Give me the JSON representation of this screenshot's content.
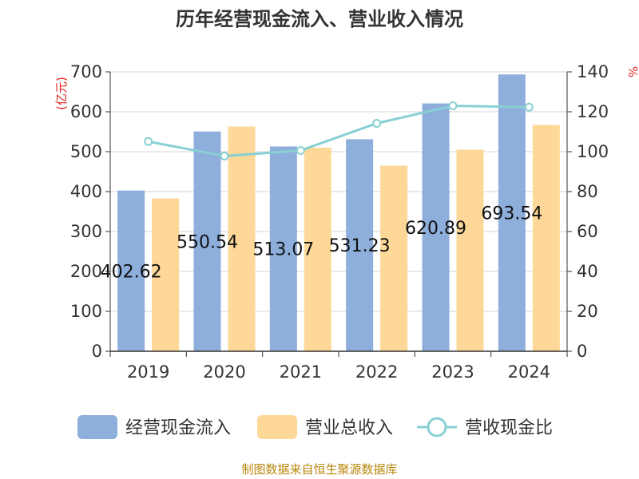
{
  "chart_data": {
    "type": "bar",
    "title": "历年经营现金流入、营业收入情况",
    "categories": [
      "2019",
      "2020",
      "2021",
      "2022",
      "2023",
      "2024"
    ],
    "series": [
      {
        "name": "经营现金流入",
        "kind": "bar",
        "axis": "left",
        "color": "#8eaedb",
        "values": [
          402.62,
          550.54,
          513.07,
          531.23,
          620.89,
          693.54
        ],
        "data_labels": [
          "402.62",
          "550.54",
          "513.07",
          "531.23",
          "620.89",
          "693.54"
        ]
      },
      {
        "name": "营业总收入",
        "kind": "bar",
        "axis": "left",
        "color": "#fdd898",
        "values": [
          383,
          563,
          510,
          465,
          505,
          567
        ]
      },
      {
        "name": "营收现金比",
        "kind": "line",
        "axis": "right",
        "color": "#88d0d3",
        "values": [
          105.1,
          97.8,
          100.6,
          114.2,
          123.0,
          122.3
        ]
      }
    ],
    "left_axis": {
      "unit": "(亿元)",
      "ylim": [
        0,
        700
      ],
      "ticks": [
        "0",
        "100",
        "200",
        "300",
        "400",
        "500",
        "600",
        "700"
      ]
    },
    "right_axis": {
      "unit": "%",
      "ylim": [
        0,
        140
      ],
      "ticks": [
        "0",
        "20",
        "40",
        "60",
        "80",
        "100",
        "120",
        "140"
      ]
    },
    "grid": true,
    "legend_position": "bottom"
  },
  "footer": {
    "source": "制图数据来自恒生聚源数据库"
  }
}
